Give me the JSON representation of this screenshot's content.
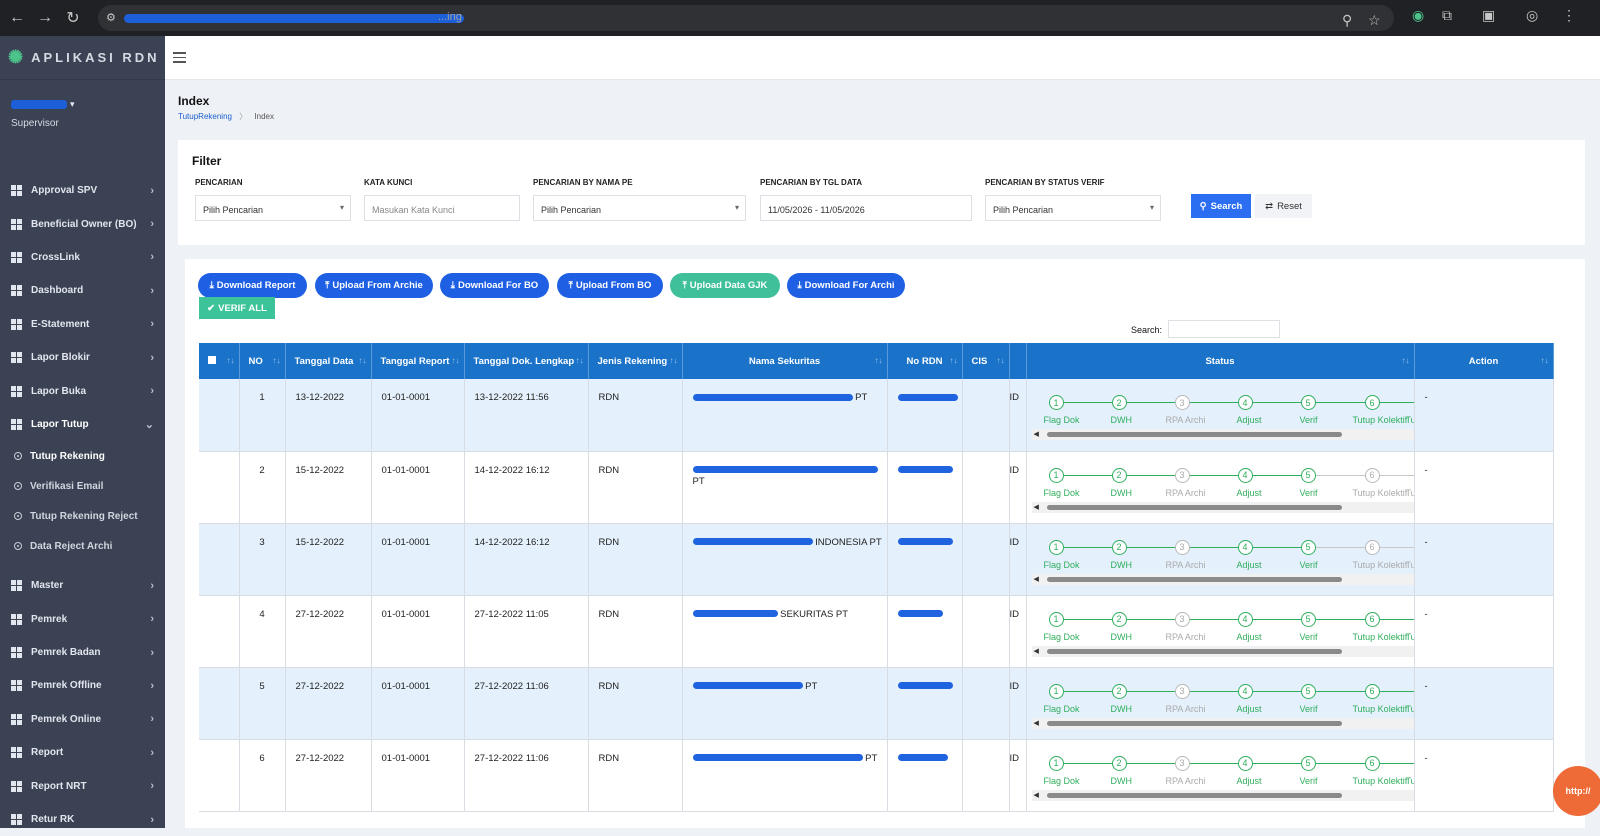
{
  "browser": {
    "url_tail": "...ing"
  },
  "sidebar": {
    "brand": "APLIKASI RDN",
    "user_role": "Supervisor",
    "items_top": [
      {
        "label": "Approval SPV"
      },
      {
        "label": "Beneficial Owner (BO)"
      },
      {
        "label": "CrossLink"
      },
      {
        "label": "Dashboard"
      },
      {
        "label": "E-Statement"
      },
      {
        "label": "Lapor Blokir"
      },
      {
        "label": "Lapor Buka"
      }
    ],
    "open_item": {
      "label": "Lapor Tutup"
    },
    "sub_items": [
      {
        "label": "Tutup Rekening"
      },
      {
        "label": "Verifikasi Email"
      },
      {
        "label": "Tutup Rekening Reject"
      },
      {
        "label": "Data Reject Archi"
      }
    ],
    "items_bottom": [
      {
        "label": "Master"
      },
      {
        "label": "Pemrek"
      },
      {
        "label": "Pemrek Badan"
      },
      {
        "label": "Pemrek Offline"
      },
      {
        "label": "Pemrek Online"
      },
      {
        "label": "Report"
      },
      {
        "label": "Report NRT"
      },
      {
        "label": "Retur RK"
      }
    ]
  },
  "page": {
    "title": "Index",
    "breadcrumb": {
      "parent": "TutupRekening",
      "sep": "〉",
      "current": "Index"
    }
  },
  "filter": {
    "title": "Filter",
    "pencarian": {
      "label": "PENCARIAN",
      "value": "Pilih Pencarian"
    },
    "kata_kunci": {
      "label": "KATA KUNCI",
      "placeholder": "Masukan Kata Kunci"
    },
    "nama_pe": {
      "label": "PENCARIAN BY NAMA PE",
      "value": "Pilih Pencarian"
    },
    "tgl_data": {
      "label": "PENCARIAN BY TGL DATA",
      "value": "11/05/2026 - 11/05/2026"
    },
    "status_verif": {
      "label": "PENCARIAN BY STATUS VERIF",
      "value": "Pilih Pencarian"
    },
    "search_btn": "Search",
    "reset_btn": "Reset"
  },
  "actions": {
    "download_report": "Download Report",
    "upload_archie": "Upload From Archie",
    "download_bo": "Download For BO",
    "upload_bo": "Upload From BO",
    "upload_gjk": "Upload Data GJK",
    "download_archi": "Download For Archi",
    "verif_all": "VERIF ALL",
    "search_label": "Search:"
  },
  "colors": {
    "primary": "#1e5fe3",
    "teal": "#3fbf9a",
    "header": "#1a73c9",
    "step_done": "#2fae5d",
    "step_pending": "#b8b8b8"
  },
  "table": {
    "headers": [
      "",
      "NO",
      "Tanggal Data",
      "Tanggal Report",
      "Tanggal Dok. Lengkap",
      "Jenis Rekening",
      "Nama Sekuritas",
      "No RDN",
      "CIS",
      "",
      "Status",
      "Action"
    ],
    "step_labels": [
      "Flag Dok",
      "DWH",
      "RPA Archi",
      "Adjust",
      "Verif",
      "Tutup Kolektif",
      "Tutu"
    ],
    "rows": [
      {
        "no": "1",
        "tgl_data": "13-12-2022",
        "tgl_report": "01-01-0001",
        "tgl_dok": "13-12-2022 11:56",
        "jenis": "RDN",
        "nama_suffix": "PT",
        "no_rdn": "",
        "cis": "",
        "id_prefix": "ID",
        "steps_done": [
          true,
          true,
          false,
          true,
          true,
          true,
          true
        ],
        "action": "-"
      },
      {
        "no": "2",
        "tgl_data": "15-12-2022",
        "tgl_report": "01-01-0001",
        "tgl_dok": "14-12-2022 16:12",
        "jenis": "RDN",
        "nama_suffix": "PT",
        "no_rdn": "",
        "cis": "",
        "id_prefix": "ID",
        "steps_done": [
          true,
          true,
          false,
          true,
          true,
          false,
          false
        ],
        "action": "-"
      },
      {
        "no": "3",
        "tgl_data": "15-12-2022",
        "tgl_report": "01-01-0001",
        "tgl_dok": "14-12-2022 16:12",
        "jenis": "RDN",
        "nama_suffix": "INDONESIA PT",
        "no_rdn": "",
        "cis": "",
        "id_prefix": "ID",
        "steps_done": [
          true,
          true,
          false,
          true,
          true,
          false,
          false
        ],
        "action": "-"
      },
      {
        "no": "4",
        "tgl_data": "27-12-2022",
        "tgl_report": "01-01-0001",
        "tgl_dok": "27-12-2022 11:05",
        "jenis": "RDN",
        "nama_suffix": "SEKURITAS PT",
        "no_rdn": "",
        "cis": "",
        "id_prefix": "ID",
        "steps_done": [
          true,
          true,
          false,
          true,
          true,
          true,
          true
        ],
        "action": "-"
      },
      {
        "no": "5",
        "tgl_data": "27-12-2022",
        "tgl_report": "01-01-0001",
        "tgl_dok": "27-12-2022 11:06",
        "jenis": "RDN",
        "nama_suffix": "PT",
        "no_rdn": "",
        "cis": "",
        "id_prefix": "ID",
        "steps_done": [
          true,
          true,
          false,
          true,
          true,
          true,
          true
        ],
        "action": "-"
      },
      {
        "no": "6",
        "tgl_data": "27-12-2022",
        "tgl_report": "01-01-0001",
        "tgl_dok": "27-12-2022 11:06",
        "jenis": "RDN",
        "nama_suffix": "PT",
        "no_rdn": "",
        "cis": "",
        "id_prefix": "ID",
        "steps_done": [
          true,
          true,
          false,
          true,
          true,
          true,
          true
        ],
        "action": "-"
      }
    ]
  },
  "fab": {
    "label": "http://"
  }
}
